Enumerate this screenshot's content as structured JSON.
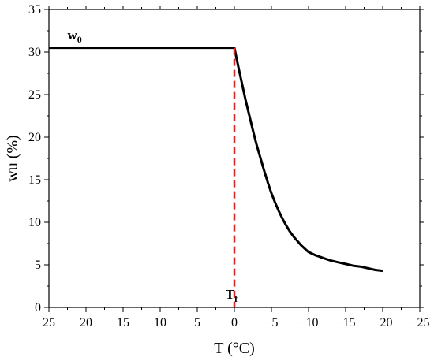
{
  "chart_data": {
    "type": "line",
    "title": "",
    "xlabel": "T (°C)",
    "ylabel": "wu (%)",
    "xlim": [
      25,
      -25
    ],
    "ylim": [
      0,
      35
    ],
    "x_reversed": true,
    "grid": false,
    "legend": "none",
    "x_ticks": [
      25,
      20,
      15,
      10,
      5,
      0,
      -5,
      -10,
      -15,
      -20,
      -25
    ],
    "x_tick_labels": [
      "25",
      "20",
      "15",
      "10",
      "5",
      "0",
      "−5",
      "−10",
      "−15",
      "−20",
      "−25"
    ],
    "y_ticks": [
      0,
      5,
      10,
      15,
      20,
      25,
      30,
      35
    ],
    "y_tick_labels": [
      "0",
      "5",
      "10",
      "15",
      "20",
      "25",
      "30",
      "35"
    ],
    "series": [
      {
        "color": "#000000",
        "style": "solid",
        "x": [
          25,
          20,
          15,
          10,
          5,
          0.2,
          0,
          -0.5,
          -1,
          -1.5,
          -2,
          -2.5,
          -3,
          -3.5,
          -4,
          -4.5,
          -5,
          -5.5,
          -6,
          -6.5,
          -7,
          -7.5,
          -8,
          -8.5,
          -9,
          -9.5,
          -10,
          -11,
          -12,
          -13,
          -14,
          -15,
          -16,
          -17,
          -18,
          -19,
          -20
        ],
        "y": [
          30.5,
          30.5,
          30.5,
          30.5,
          30.5,
          30.5,
          30.5,
          28.4,
          26.4,
          24.4,
          22.6,
          20.8,
          19.1,
          17.6,
          16.1,
          14.7,
          13.4,
          12.3,
          11.3,
          10.4,
          9.6,
          8.9,
          8.3,
          7.8,
          7.3,
          6.9,
          6.5,
          6.1,
          5.8,
          5.5,
          5.3,
          5.1,
          4.9,
          4.8,
          4.6,
          4.4,
          4.3
        ]
      },
      {
        "color": "#d62728",
        "style": "dashed",
        "x": [
          0,
          0
        ],
        "y": [
          30.5,
          0
        ]
      }
    ],
    "annotations": [
      {
        "text": "w",
        "sub": "0",
        "x": 22.5,
        "y": 31.5
      },
      {
        "text": "T",
        "sub": "f",
        "x": 1.2,
        "y": 1.0
      }
    ]
  }
}
